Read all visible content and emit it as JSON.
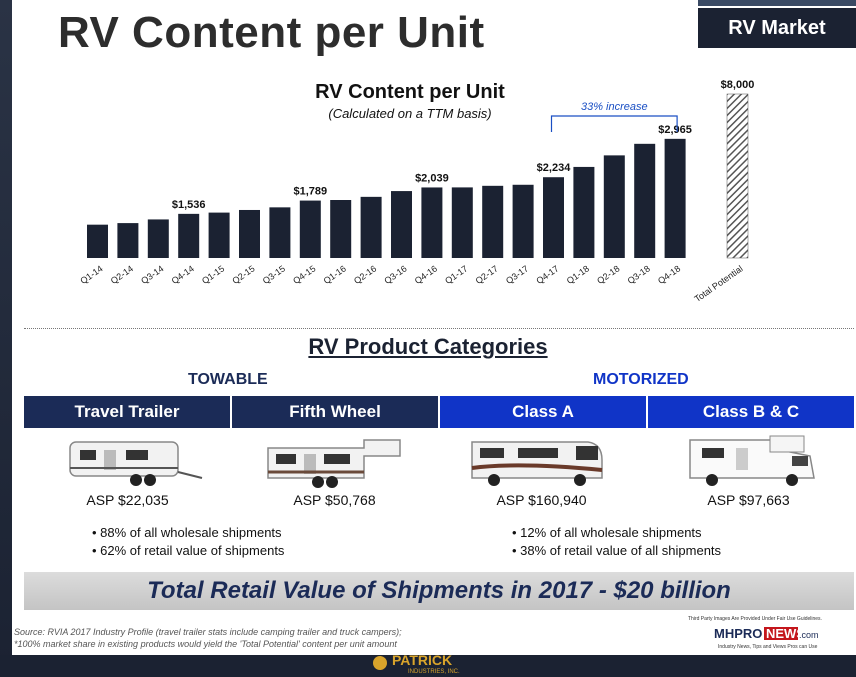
{
  "header": {
    "title": "RV Content per Unit",
    "badge": "RV Market"
  },
  "chart_data": {
    "type": "bar",
    "title": "RV Content per Unit",
    "subtitle": "(Calculated on a TTM basis)",
    "categories": [
      "Q1-14",
      "Q2-14",
      "Q3-14",
      "Q4-14",
      "Q1-15",
      "Q2-15",
      "Q3-15",
      "Q4-15",
      "Q1-16",
      "Q2-16",
      "Q3-16",
      "Q4-16",
      "Q1-17",
      "Q2-17",
      "Q3-17",
      "Q4-17",
      "Q1-18",
      "Q2-18",
      "Q3-18",
      "Q4-18",
      "Total Potential"
    ],
    "values": [
      1330,
      1360,
      1430,
      1536,
      1560,
      1610,
      1660,
      1789,
      1800,
      1860,
      1970,
      2039,
      2040,
      2070,
      2090,
      2234,
      2430,
      2650,
      2870,
      2965,
      8000
    ],
    "data_labels": [
      "",
      "",
      "",
      "$1,536",
      "",
      "",
      "",
      "$1,789",
      "",
      "",
      "",
      "$2,039",
      "",
      "",
      "",
      "$2,234",
      "",
      "",
      "",
      "$2,965",
      "$8,000"
    ],
    "annotation": "33% increase",
    "bar_color": "#1b2232",
    "potential_pattern": "hatched",
    "grid": false
  },
  "categories_section": {
    "title": "RV Product Categories",
    "towable_label": "TOWABLE",
    "motorized_label": "MOTORIZED",
    "tabs": [
      {
        "label": "Travel Trailer",
        "asp": "ASP $22,035"
      },
      {
        "label": "Fifth Wheel",
        "asp": "ASP $50,768"
      },
      {
        "label": "Class A",
        "asp": "ASP $160,940"
      },
      {
        "label": "Class B & C",
        "asp": "ASP $97,663"
      }
    ],
    "towable_bullets": [
      "• 88% of all wholesale shipments",
      "• 62% of retail value of shipments"
    ],
    "motorized_bullets": [
      "• 12% of all wholesale shipments",
      "• 38% of retail value of all shipments"
    ]
  },
  "total": "Total Retail Value of Shipments in 2017 - $20 billion",
  "source": {
    "line1": "Source: RVIA 2017 Industry Profile (travel trailer stats include camping trailer and truck campers);",
    "line2": "*100% market share in existing products would yield the 'Total Potential' content per unit amount"
  },
  "logos": {
    "mhp_fineprint": "Third Party Images Are Provided Under Fair Use Guidelines.",
    "mhp_text_a": "MHPRO",
    "mhp_text_b": "NEWS",
    "mhp_text_c": ".com",
    "mhp_tagline": "Industry News, Tips and Views Pros can Use",
    "patrick_name": "PATRICK",
    "patrick_sub": "INDUSTRIES, INC."
  }
}
